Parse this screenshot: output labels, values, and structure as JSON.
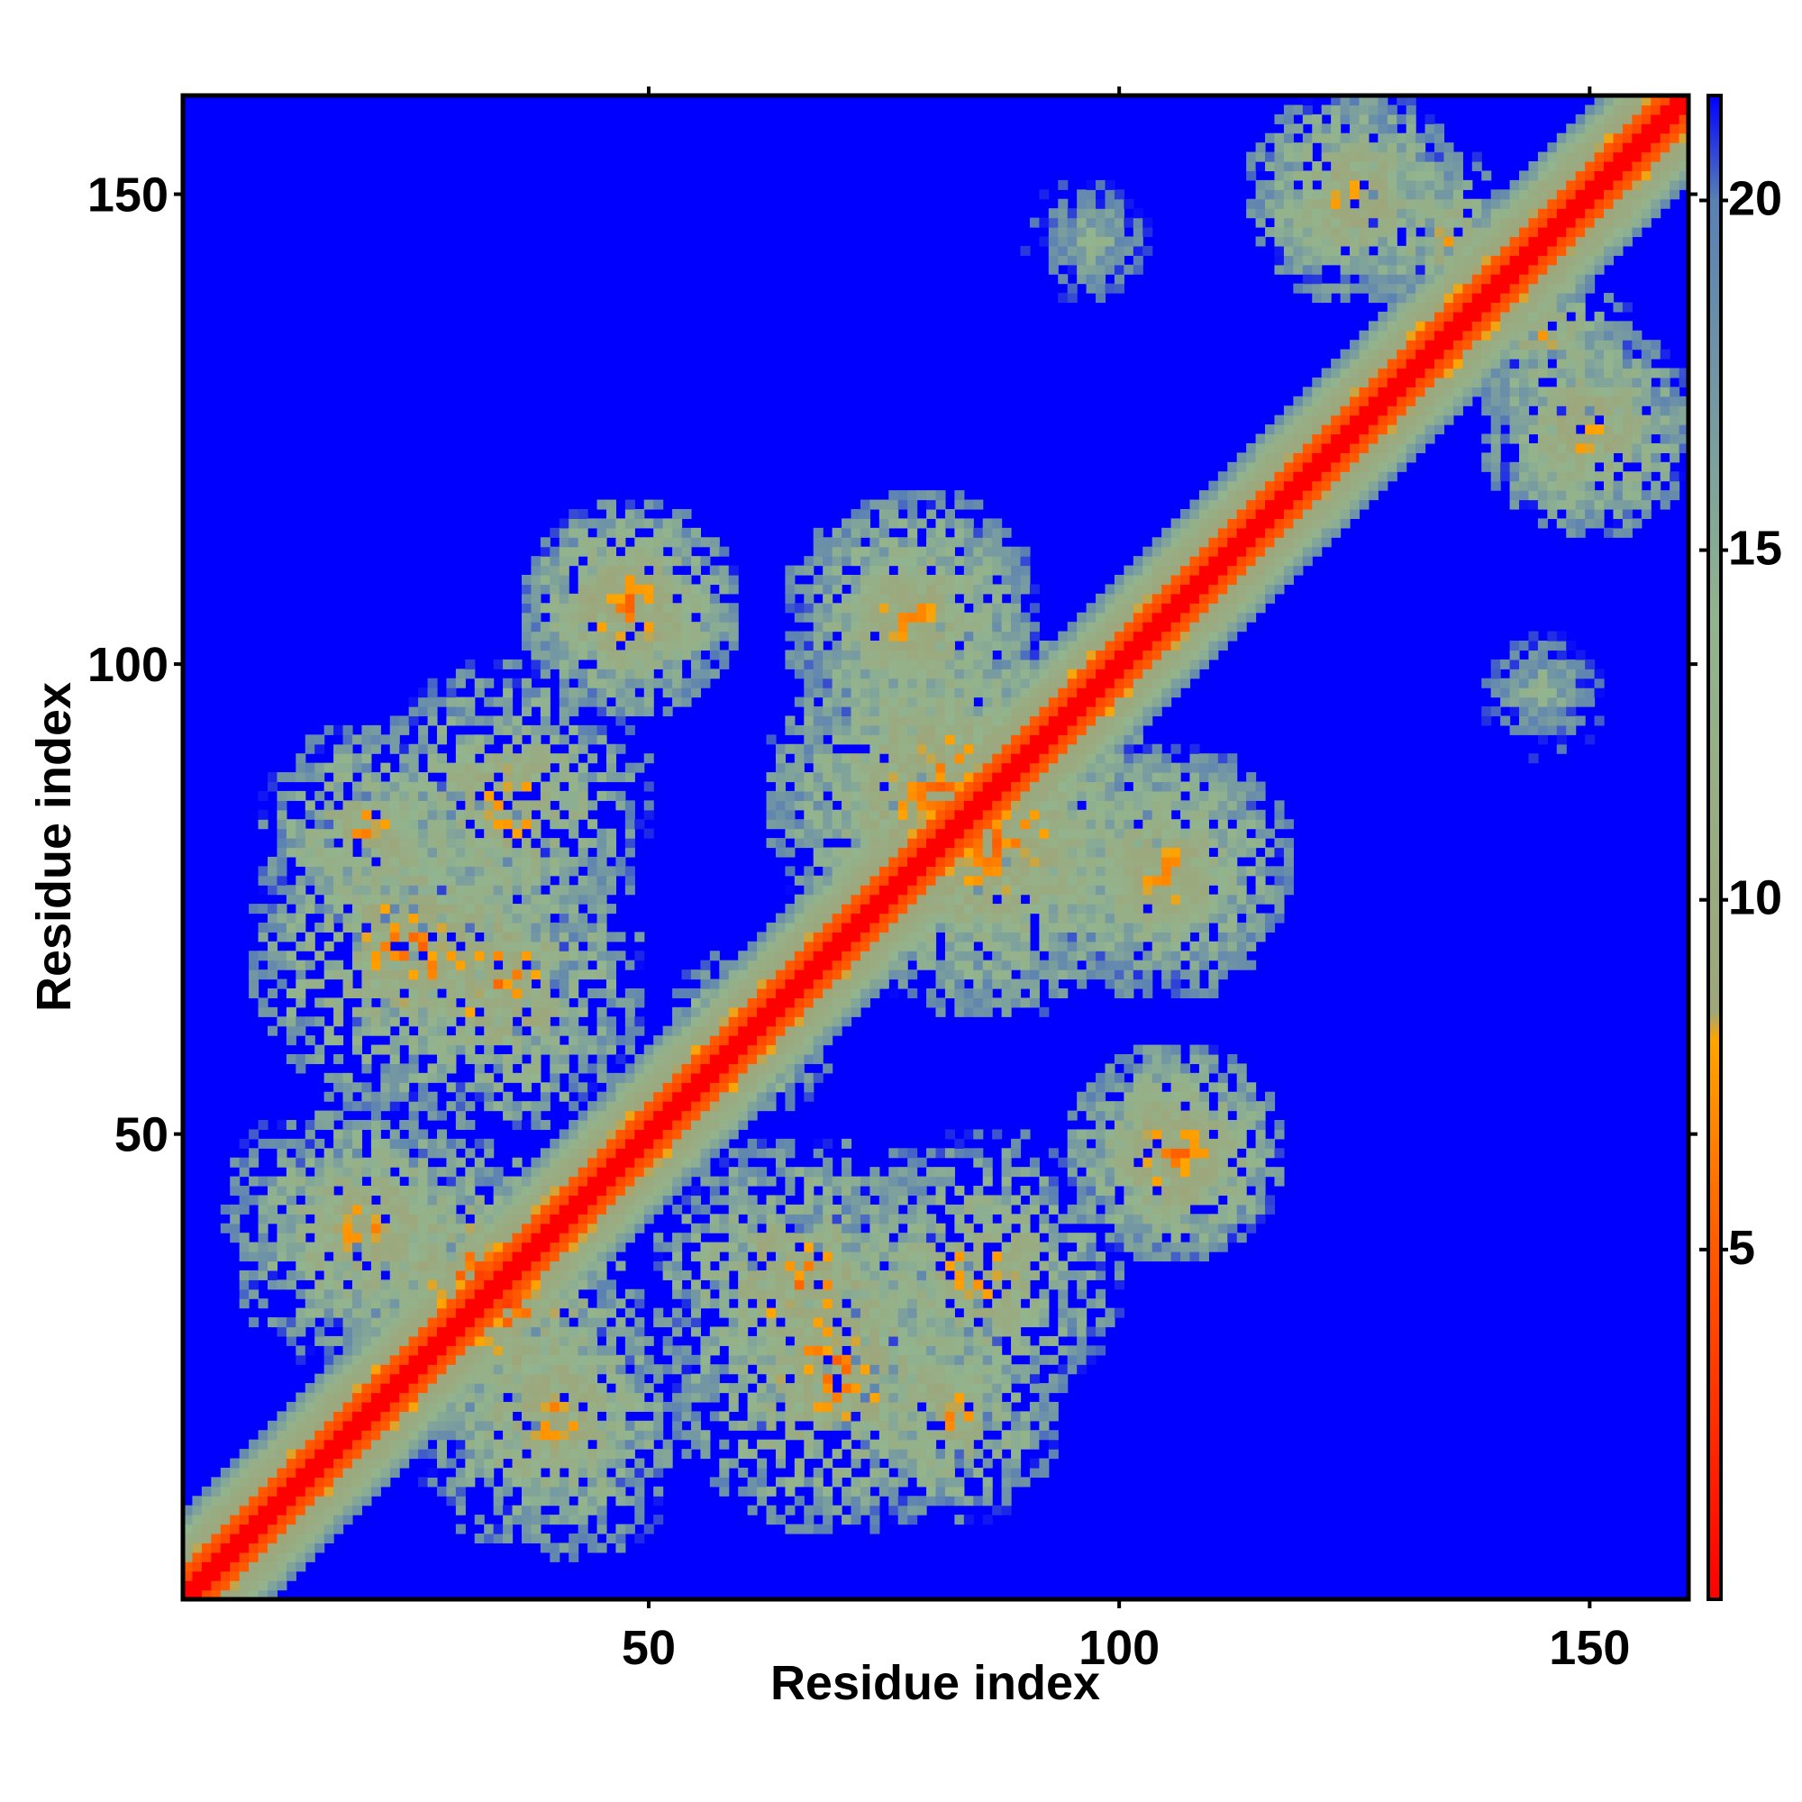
{
  "chart_data": {
    "type": "heatmap",
    "title": "",
    "xlabel": "Residue index",
    "ylabel": "Residue index",
    "xlim": [
      1,
      160
    ],
    "ylim": [
      1,
      160
    ],
    "x_ticks": [
      50,
      100,
      150
    ],
    "y_ticks": [
      50,
      100,
      150
    ],
    "colorbar": {
      "range": [
        0,
        21.5
      ],
      "ticks": [
        5,
        10,
        15,
        20
      ],
      "stops": [
        {
          "value": 0,
          "color": "#ff0000"
        },
        {
          "value": 5,
          "color": "#ff5a00"
        },
        {
          "value": 8,
          "color": "#ffa500"
        },
        {
          "value": 8.4,
          "color": "#9ea67a"
        },
        {
          "value": 14,
          "color": "#92b48e"
        },
        {
          "value": 20,
          "color": "#5a80b4"
        },
        {
          "value": 21.5,
          "color": "#0000ff"
        }
      ]
    },
    "symmetric": true,
    "description_of_values": "Pairwise residue distance map; diagonal band low values (red/orange), off-diagonal clusters intermediate values (green/grey), background high values (blue)",
    "clusters": [
      {
        "x": 106,
        "y": 48,
        "radius": 12,
        "peak": 6
      },
      {
        "x": 48,
        "y": 106,
        "radius": 12,
        "peak": 6
      },
      {
        "x": 35,
        "y": 32,
        "radius": 14,
        "peak": 5
      },
      {
        "x": 66,
        "y": 34,
        "radius": 16,
        "peak": 6
      },
      {
        "x": 82,
        "y": 20,
        "radius": 12,
        "peak": 7
      },
      {
        "x": 40,
        "y": 20,
        "radius": 12,
        "peak": 7
      },
      {
        "x": 25,
        "y": 70,
        "radius": 18,
        "peak": 6
      },
      {
        "x": 35,
        "y": 85,
        "radius": 16,
        "peak": 7
      },
      {
        "x": 20,
        "y": 40,
        "radius": 16,
        "peak": 7
      },
      {
        "x": 86,
        "y": 82,
        "radius": 20,
        "peak": 6
      },
      {
        "x": 82,
        "y": 86,
        "radius": 20,
        "peak": 6
      },
      {
        "x": 105,
        "y": 78,
        "radius": 14,
        "peak": 7
      },
      {
        "x": 78,
        "y": 105,
        "radius": 14,
        "peak": 7
      },
      {
        "x": 150,
        "y": 125,
        "radius": 12,
        "peak": 7
      },
      {
        "x": 125,
        "y": 150,
        "radius": 12,
        "peak": 7
      },
      {
        "x": 135,
        "y": 145,
        "radius": 10,
        "peak": 8
      },
      {
        "x": 97,
        "y": 145,
        "radius": 8,
        "peak": 12
      },
      {
        "x": 145,
        "y": 97,
        "radius": 8,
        "peak": 12
      },
      {
        "x": 60,
        "y": 60,
        "radius": 10,
        "peak": 8
      }
    ]
  }
}
